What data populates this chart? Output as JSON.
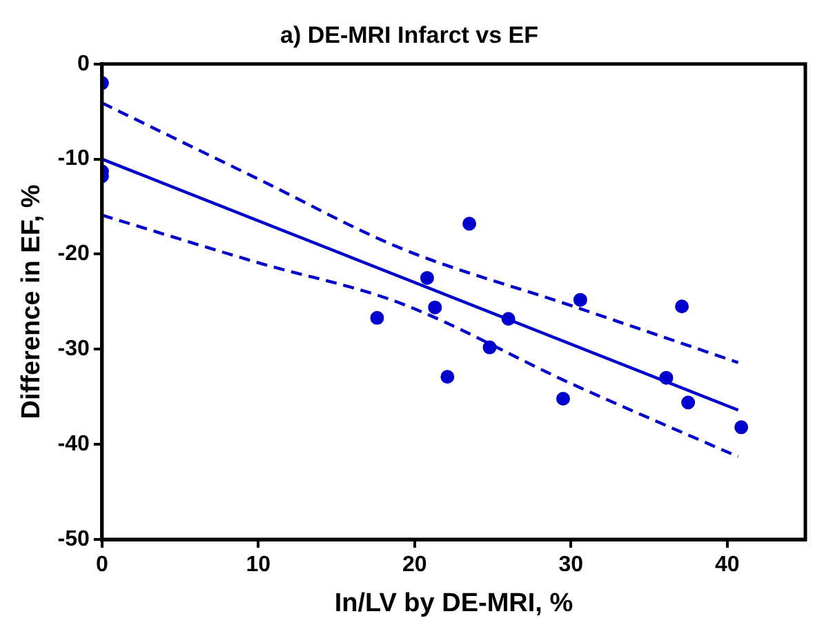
{
  "chart_data": {
    "type": "scatter",
    "title": "a) DE-MRI Infarct vs EF",
    "xlabel": "In/LV by DE-MRI, %",
    "ylabel": "Difference in EF, %",
    "xlim": [
      0,
      45
    ],
    "xticks": [
      0,
      10,
      20,
      30,
      40
    ],
    "ylim": [
      -50,
      0
    ],
    "yticks": [
      -50,
      -40,
      -30,
      -20,
      -10,
      0
    ],
    "grid": false,
    "legend": false,
    "series": [
      {
        "color": "#0000cc",
        "marker": "circle",
        "x": [
          0,
          0,
          0,
          17.6,
          20.8,
          21.3,
          22.1,
          23.5,
          24.8,
          26.0,
          29.5,
          30.6,
          36.1,
          37.1,
          37.5,
          40.9
        ],
        "values": [
          -2.0,
          -11.3,
          -11.8,
          -26.7,
          -22.5,
          -25.6,
          -32.9,
          -16.8,
          -29.8,
          -26.8,
          -35.2,
          -24.8,
          -33.0,
          -25.5,
          -35.6,
          -38.2
        ]
      },
      {
        "type": "line",
        "color": "#0000cc",
        "marker": "none",
        "line_style": "solid",
        "x": [
          0,
          40.7
        ],
        "values": [
          -10.0,
          -36.4
        ]
      },
      {
        "type": "line",
        "color": "#0000cc",
        "marker": "none",
        "line_style": "dashed",
        "x": [
          0,
          10,
          19,
          30,
          40.7
        ],
        "values": [
          -4.1,
          -12.1,
          -19.3,
          -25.4,
          -31.4
        ]
      },
      {
        "type": "line",
        "color": "#0000cc",
        "marker": "none",
        "line_style": "dashed",
        "x": [
          0,
          10,
          19,
          30,
          40.7
        ],
        "values": [
          -15.9,
          -20.9,
          -25.1,
          -33.6,
          -41.3
        ]
      }
    ]
  }
}
